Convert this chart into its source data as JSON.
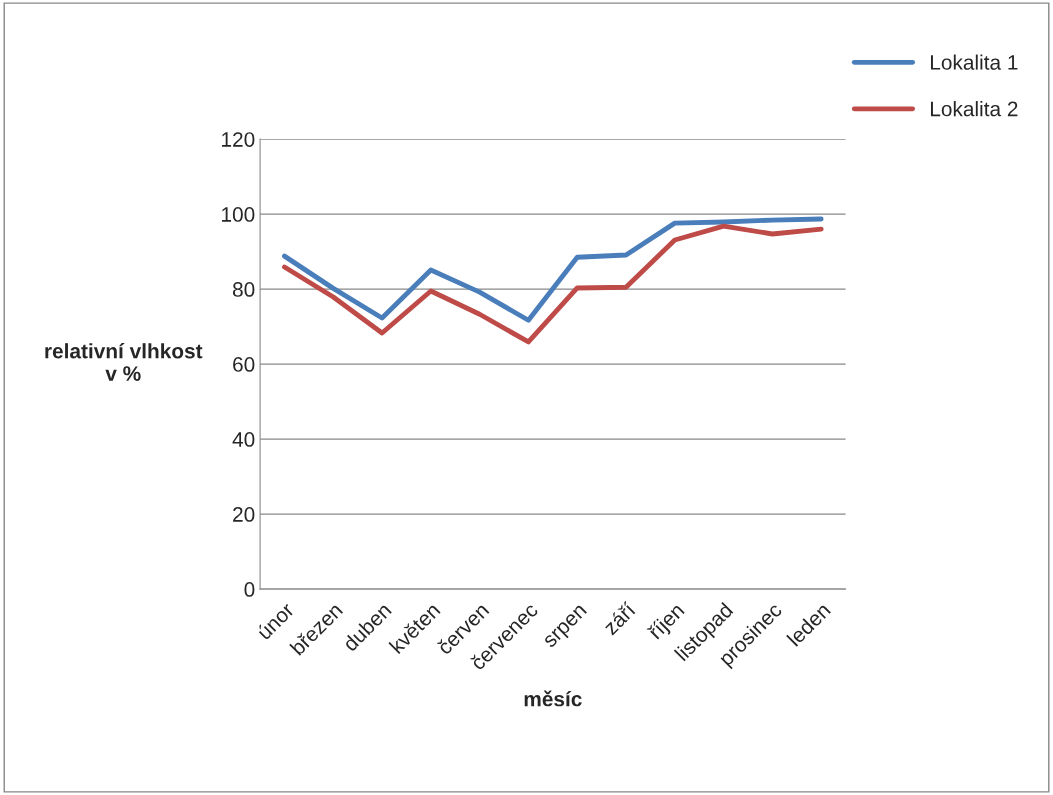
{
  "chart_data": {
    "type": "line",
    "xlabel": "měsíc",
    "ylabel": "relativní vlhkost\nv %",
    "categories": [
      "únor",
      "březen",
      "duben",
      "květen",
      "červen",
      "červenec",
      "srpen",
      "září",
      "říjen",
      "listopad",
      "prosinec",
      "leden"
    ],
    "series": [
      {
        "name": "Lokalita 1",
        "color": "#4a7ebb",
        "values": [
          88.8,
          80.2,
          72.3,
          85.1,
          79.2,
          71.7,
          88.5,
          89.1,
          97.6,
          97.9,
          98.4,
          98.7
        ]
      },
      {
        "name": "Lokalita 2",
        "color": "#be4b48",
        "values": [
          85.9,
          77.9,
          68.3,
          79.5,
          73.3,
          65.9,
          80.3,
          80.5,
          93.1,
          96.8,
          94.7,
          96.0
        ]
      }
    ],
    "ylim": [
      0,
      120
    ],
    "yticks": [
      0,
      20,
      40,
      60,
      80,
      100,
      120
    ],
    "grid": "y",
    "legend": "top right",
    "marker": "none",
    "line_style": "solid"
  }
}
